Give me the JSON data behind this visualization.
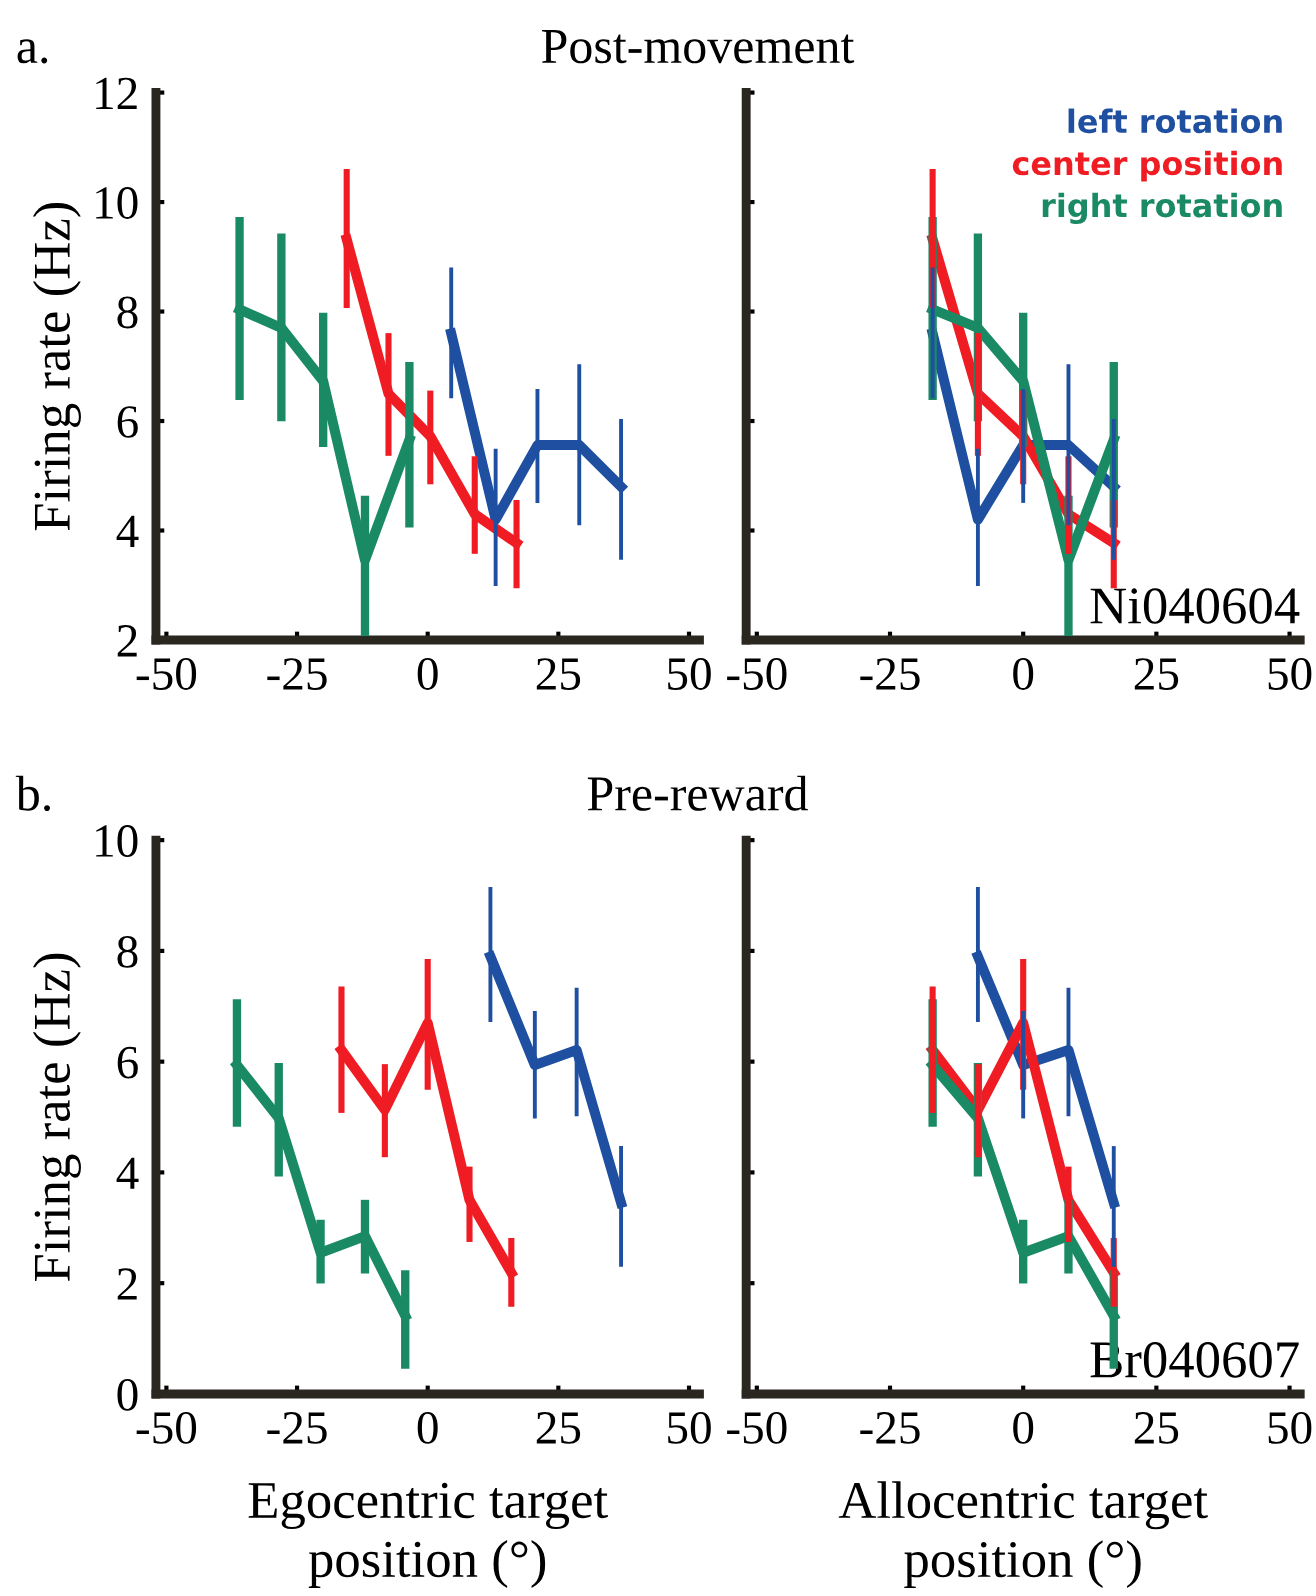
{
  "chart_data": [
    {
      "type": "line",
      "title": "Post-movement",
      "ylabel": "Firing rate (Hz)",
      "annotations": [
        "a."
      ],
      "xlim": [
        -52,
        52
      ],
      "ylim": [
        2,
        12
      ],
      "xticks": [
        -50,
        -25,
        0,
        25,
        50
      ],
      "yticks": [
        2,
        4,
        6,
        8,
        10,
        12
      ],
      "grid": false,
      "marker": "none",
      "line_style": "solid",
      "series": [
        {
          "color": "#1f4fa0",
          "x": [
            4.5,
            13,
            21,
            29,
            37
          ],
          "values": [
            7.6,
            4.2,
            5.56,
            5.56,
            4.8
          ],
          "errors": [
            [
              6.45,
              8.77
            ],
            [
              3.02,
              5.46
            ],
            [
              4.54,
              6.55
            ],
            [
              4.13,
              7.0
            ],
            [
              3.5,
              6.0
            ]
          ]
        },
        {
          "color": "#f01c24",
          "x": [
            -15.5,
            -7.5,
            0.5,
            9,
            17
          ],
          "values": [
            9.32,
            6.5,
            5.72,
            4.3,
            3.77
          ],
          "errors": [
            [
              8.12,
              10.55
            ],
            [
              5.42,
              7.55
            ],
            [
              4.9,
              6.5
            ],
            [
              3.63,
              5.3
            ],
            [
              3.0,
              4.5
            ]
          ]
        },
        {
          "color": "#1a8a64",
          "x": [
            -36,
            -28,
            -20,
            -12,
            -3.5
          ],
          "values": [
            8.04,
            7.7,
            6.73,
            3.46,
            5.66
          ],
          "errors": [
            [
              6.46,
              9.65
            ],
            [
              6.07,
              9.35
            ],
            [
              5.6,
              7.9
            ],
            [
              2.15,
              4.56
            ],
            [
              4.13,
              7.0
            ]
          ]
        }
      ]
    },
    {
      "type": "line",
      "annotations": [
        "Ni040604"
      ],
      "legend": "top right",
      "tick_labels": "x",
      "xlim": [
        -52,
        52
      ],
      "ylim": [
        2,
        12
      ],
      "xticks": [
        -50,
        -25,
        0,
        25,
        50
      ],
      "yticks": [
        2,
        4,
        6,
        8,
        10,
        12
      ],
      "grid": false,
      "marker": "none",
      "line_style": "solid",
      "series": [
        {
          "name": "left rotation",
          "color": "#1f4fa0",
          "x": [
            -17,
            -8.5,
            0,
            8.5,
            17
          ],
          "values": [
            7.6,
            4.2,
            5.56,
            5.56,
            4.8
          ],
          "errors": [
            [
              6.45,
              8.77
            ],
            [
              3.02,
              5.46
            ],
            [
              4.54,
              6.55
            ],
            [
              4.13,
              7.0
            ],
            [
              3.5,
              6.0
            ]
          ]
        },
        {
          "name": "center position",
          "color": "#f01c24",
          "x": [
            -17,
            -8.5,
            0,
            8.5,
            17
          ],
          "values": [
            9.32,
            6.5,
            5.72,
            4.3,
            3.77
          ],
          "errors": [
            [
              8.12,
              10.55
            ],
            [
              5.42,
              7.55
            ],
            [
              4.9,
              6.5
            ],
            [
              3.63,
              5.3
            ],
            [
              3.0,
              4.5
            ]
          ]
        },
        {
          "name": "right rotation",
          "color": "#1a8a64",
          "x": [
            -17,
            -8.5,
            0,
            8.5,
            17
          ],
          "values": [
            8.04,
            7.7,
            6.73,
            3.46,
            5.66
          ],
          "errors": [
            [
              6.46,
              9.65
            ],
            [
              6.07,
              9.35
            ],
            [
              5.6,
              7.9
            ],
            [
              2.15,
              4.56
            ],
            [
              4.13,
              7.0
            ]
          ]
        }
      ]
    },
    {
      "type": "line",
      "title": "Pre-reward",
      "ylabel": "Firing rate (Hz)",
      "xlabel": "Egocentric target\nposition (°)",
      "annotations": [
        "b."
      ],
      "xlim": [
        -52,
        52
      ],
      "ylim": [
        0,
        10
      ],
      "xticks": [
        -50,
        -25,
        0,
        25,
        50
      ],
      "yticks": [
        0,
        2,
        4,
        6,
        8,
        10
      ],
      "grid": false,
      "marker": "none",
      "line_style": "solid",
      "series": [
        {
          "color": "#1f4fa0",
          "x": [
            12,
            20.5,
            28.5,
            37
          ],
          "values": [
            7.9,
            5.94,
            6.21,
            3.45
          ],
          "errors": [
            [
              6.75,
              9.12
            ],
            [
              5.01,
              6.88
            ],
            [
              5.05,
              7.3
            ],
            [
              2.33,
              4.44
            ]
          ]
        },
        {
          "color": "#f01c24",
          "x": [
            -16.5,
            -8.2,
            0,
            8,
            16
          ],
          "values": [
            6.21,
            5.13,
            6.7,
            3.5,
            2.19
          ],
          "errors": [
            [
              5.13,
              7.3
            ],
            [
              4.33,
              5.9
            ],
            [
              5.55,
              7.8
            ],
            [
              2.8,
              4.05
            ],
            [
              1.63,
              2.76
            ]
          ]
        },
        {
          "color": "#1a8a64",
          "x": [
            -36.5,
            -28.5,
            -20.5,
            -12,
            -4.3
          ],
          "values": [
            5.94,
            4.98,
            2.55,
            2.85,
            1.41
          ],
          "errors": [
            [
              4.9,
              7.05
            ],
            [
              4.0,
              5.9
            ],
            [
              2.07,
              3.07
            ],
            [
              2.25,
              3.43
            ],
            [
              0.53,
              2.16
            ]
          ]
        }
      ]
    },
    {
      "type": "line",
      "xlabel": "Allocentric target\nposition (°)",
      "annotations": [
        "Br040607"
      ],
      "tick_labels": "x",
      "xlim": [
        -52,
        52
      ],
      "ylim": [
        0,
        10
      ],
      "xticks": [
        -50,
        -25,
        0,
        25,
        50
      ],
      "yticks": [
        0,
        2,
        4,
        6,
        8,
        10
      ],
      "grid": false,
      "marker": "none",
      "line_style": "solid",
      "series": [
        {
          "color": "#1f4fa0",
          "x": [
            -8.5,
            0,
            8.5,
            17
          ],
          "values": [
            7.9,
            5.94,
            6.21,
            3.45
          ],
          "errors": [
            [
              6.75,
              9.12
            ],
            [
              5.01,
              6.88
            ],
            [
              5.05,
              7.3
            ],
            [
              2.33,
              4.44
            ]
          ]
        },
        {
          "color": "#f01c24",
          "x": [
            -17,
            -8.5,
            0,
            8.5,
            17
          ],
          "values": [
            6.21,
            5.13,
            6.7,
            3.5,
            2.19
          ],
          "errors": [
            [
              5.13,
              7.3
            ],
            [
              4.33,
              5.9
            ],
            [
              5.55,
              7.8
            ],
            [
              2.8,
              4.05
            ],
            [
              1.63,
              2.76
            ]
          ]
        },
        {
          "color": "#1a8a64",
          "x": [
            -17,
            -8.5,
            0,
            8.5,
            17
          ],
          "values": [
            5.94,
            4.98,
            2.55,
            2.85,
            1.41
          ],
          "errors": [
            [
              4.9,
              7.05
            ],
            [
              4.0,
              5.9
            ],
            [
              2.07,
              3.07
            ],
            [
              2.25,
              3.43
            ],
            [
              0.53,
              2.16
            ]
          ]
        }
      ]
    }
  ]
}
